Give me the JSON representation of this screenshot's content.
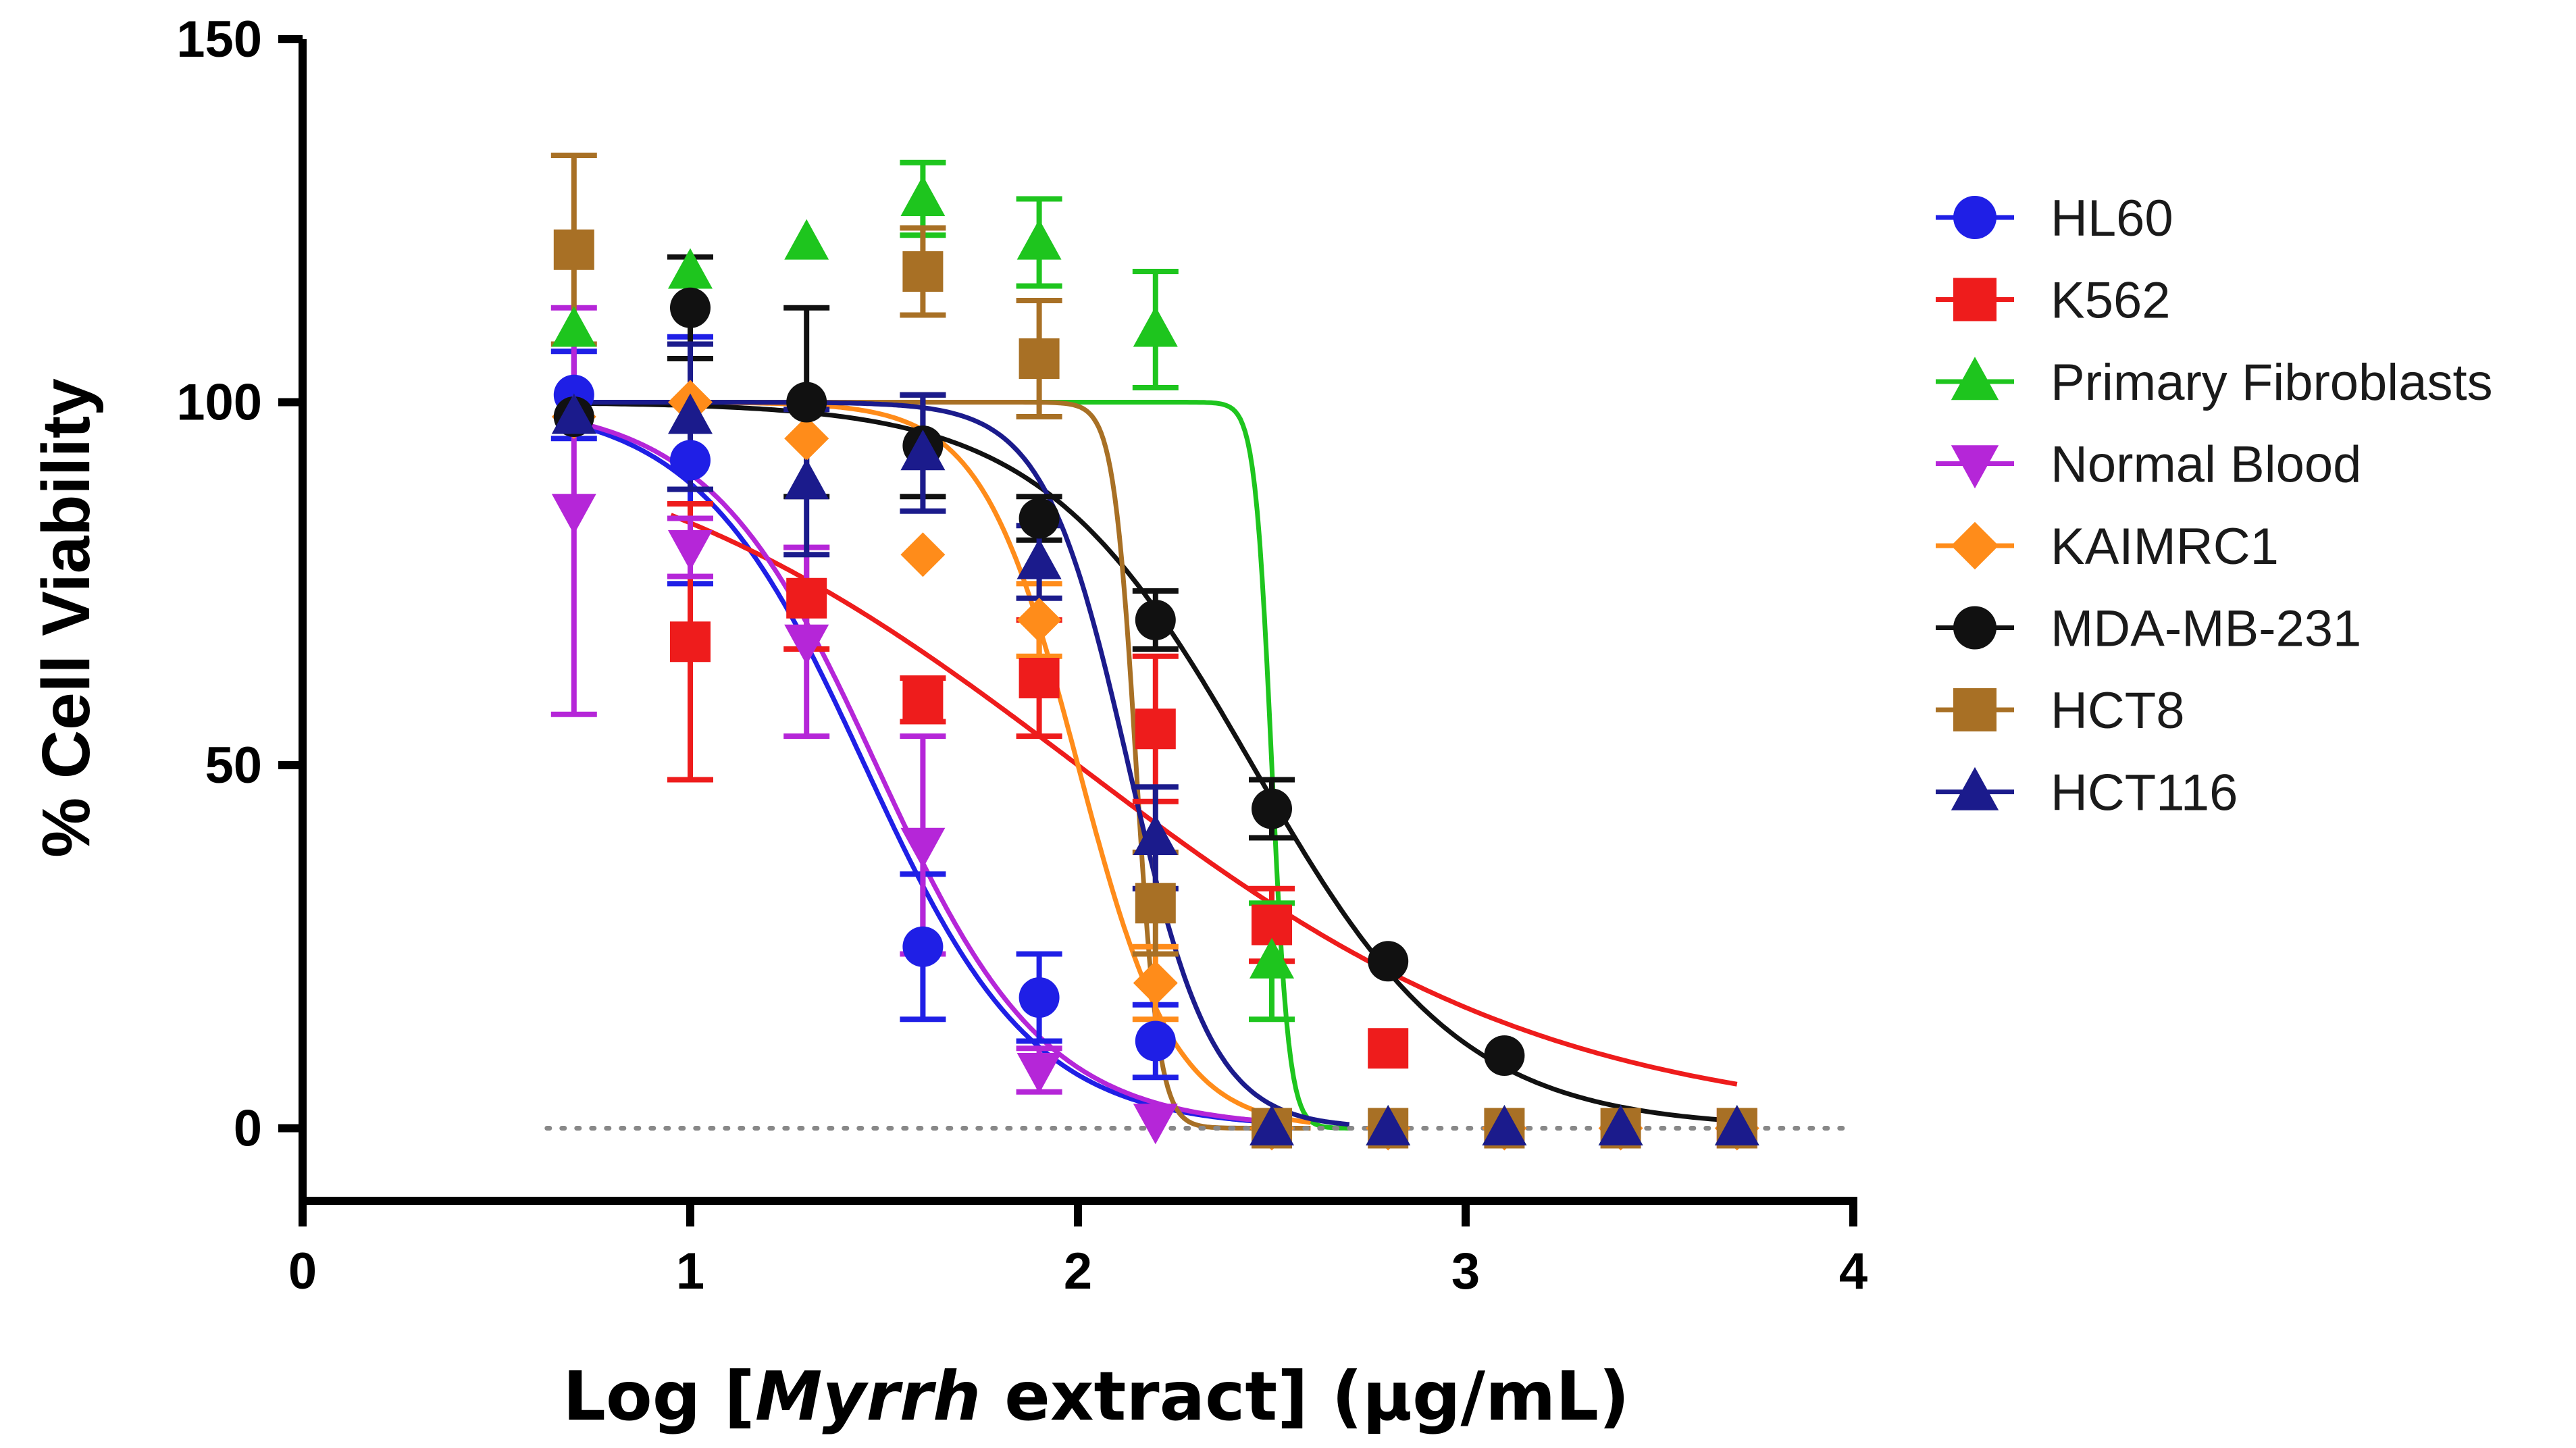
{
  "chart_data": {
    "type": "scatter",
    "title": "",
    "ylabel": "% Cell Viability",
    "xlabel_parts": [
      "Log [",
      "Myrrh",
      " extract] (µg/mL)"
    ],
    "xlim": [
      0,
      4
    ],
    "ylim": [
      -10,
      150
    ],
    "xticks": [
      "0",
      "1",
      "2",
      "3",
      "4"
    ],
    "yticks": [
      "0",
      "50",
      "100",
      "150"
    ],
    "legend_position": "right",
    "reference_line": {
      "y": 0,
      "style": "dotted"
    },
    "series": [
      {
        "name": "HL60",
        "color": "#1f1fe6",
        "marker": "circle",
        "points": [
          [
            0.7,
            101
          ],
          [
            1.0,
            92
          ],
          [
            1.6,
            25
          ],
          [
            1.9,
            18
          ],
          [
            2.2,
            12
          ],
          [
            2.5,
            0
          ],
          [
            2.8,
            0
          ],
          [
            3.1,
            0
          ],
          [
            3.4,
            0
          ],
          [
            3.7,
            0
          ]
        ],
        "errors": [
          6,
          17,
          10,
          6,
          5,
          0,
          0,
          0,
          0,
          0
        ],
        "fit": {
          "top": 100,
          "bottom": 0,
          "logic50": 1.45,
          "hill": 2.0,
          "x0": 0.7,
          "x1": 2.5
        }
      },
      {
        "name": "K562",
        "color": "#ee1c1c",
        "marker": "square",
        "points": [
          [
            1.0,
            67
          ],
          [
            1.3,
            73
          ],
          [
            1.6,
            59
          ],
          [
            1.9,
            62
          ],
          [
            2.2,
            55
          ],
          [
            2.5,
            28
          ],
          [
            2.8,
            11
          ],
          [
            3.7,
            0
          ]
        ],
        "errors": [
          19,
          7,
          3,
          8,
          10,
          5,
          0,
          0
        ],
        "fit": {
          "top": 100,
          "bottom": 0,
          "logic50": 2.0,
          "hill": 0.7,
          "x0": 0.95,
          "x1": 3.7
        }
      },
      {
        "name": "Primary Fibroblasts",
        "color": "#1ec51e",
        "marker": "triangle",
        "points": [
          [
            0.7,
            110
          ],
          [
            1.0,
            118
          ],
          [
            1.3,
            122
          ],
          [
            1.6,
            128
          ],
          [
            1.9,
            122
          ],
          [
            2.2,
            110
          ],
          [
            2.5,
            23
          ],
          [
            2.8,
            0
          ],
          [
            3.1,
            0
          ],
          [
            3.4,
            0
          ],
          [
            3.7,
            0
          ]
        ],
        "errors": [
          0,
          0,
          0,
          5,
          6,
          8,
          8,
          0,
          0,
          0,
          0
        ],
        "fit": {
          "top": 100,
          "bottom": 0,
          "logic50": 2.5,
          "hill": 20,
          "x0": 0.7,
          "x1": 2.7
        }
      },
      {
        "name": "Normal Blood",
        "color": "#b526d8",
        "marker": "triangle-down",
        "points": [
          [
            0.7,
            85
          ],
          [
            1.0,
            80
          ],
          [
            1.3,
            67
          ],
          [
            1.6,
            39
          ],
          [
            1.9,
            8
          ],
          [
            2.2,
            1
          ]
        ],
        "errors": [
          28,
          4,
          13,
          15,
          3,
          0
        ],
        "fit": {
          "top": 100,
          "bottom": 0,
          "logic50": 1.48,
          "hill": 2.0,
          "x0": 0.7,
          "x1": 2.5
        }
      },
      {
        "name": "KAIMRC1",
        "color": "#ff8c1a",
        "marker": "diamond",
        "points": [
          [
            0.7,
            98
          ],
          [
            1.0,
            100
          ],
          [
            1.3,
            95
          ],
          [
            1.6,
            79
          ],
          [
            1.9,
            70
          ],
          [
            2.2,
            20
          ],
          [
            2.5,
            0
          ],
          [
            2.8,
            0
          ],
          [
            3.1,
            0
          ],
          [
            3.4,
            0
          ],
          [
            3.7,
            0
          ]
        ],
        "errors": [
          0,
          0,
          0,
          0,
          5,
          5,
          0,
          0,
          0,
          0,
          0
        ],
        "fit": {
          "top": 100,
          "bottom": 0,
          "logic50": 2.0,
          "hill": 3.5,
          "x0": 0.7,
          "x1": 2.6
        }
      },
      {
        "name": "MDA-MB-231",
        "color": "#111111",
        "marker": "circle",
        "points": [
          [
            0.7,
            98
          ],
          [
            1.0,
            113
          ],
          [
            1.3,
            100
          ],
          [
            1.6,
            94
          ],
          [
            1.9,
            84
          ],
          [
            2.2,
            70
          ],
          [
            2.5,
            44
          ],
          [
            2.8,
            23
          ],
          [
            3.1,
            10
          ],
          [
            3.4,
            0
          ],
          [
            3.7,
            0
          ]
        ],
        "errors": [
          0,
          7,
          13,
          7,
          3,
          4,
          4,
          0,
          0,
          0,
          0
        ],
        "fit": {
          "top": 100,
          "bottom": 0,
          "logic50": 2.45,
          "hill": 1.6,
          "x0": 0.7,
          "x1": 3.7
        }
      },
      {
        "name": "HCT8",
        "color": "#a87025",
        "marker": "square",
        "points": [
          [
            0.7,
            121
          ],
          [
            1.6,
            118
          ],
          [
            1.9,
            106
          ],
          [
            2.2,
            31
          ],
          [
            2.5,
            0
          ],
          [
            2.8,
            0
          ],
          [
            3.1,
            0
          ],
          [
            3.4,
            0
          ],
          [
            3.7,
            0
          ]
        ],
        "errors": [
          13,
          6,
          8,
          7,
          0,
          0,
          0,
          0,
          0
        ],
        "fit": {
          "top": 100,
          "bottom": 0,
          "logic50": 2.15,
          "hill": 15,
          "x0": 0.7,
          "x1": 2.6
        }
      },
      {
        "name": "HCT116",
        "color": "#1b1b8c",
        "marker": "triangle",
        "points": [
          [
            0.7,
            98
          ],
          [
            1.0,
            98
          ],
          [
            1.3,
            89
          ],
          [
            1.6,
            93
          ],
          [
            1.9,
            78
          ],
          [
            2.2,
            40
          ],
          [
            2.5,
            0
          ],
          [
            2.8,
            0
          ],
          [
            3.1,
            0
          ],
          [
            3.4,
            0
          ],
          [
            3.7,
            0
          ]
        ],
        "errors": [
          0,
          10,
          10,
          8,
          5,
          7,
          0,
          0,
          0,
          0,
          0
        ],
        "fit": {
          "top": 100,
          "bottom": 0,
          "logic50": 2.13,
          "hill": 4.0,
          "x0": 0.7,
          "x1": 2.7
        }
      }
    ]
  }
}
